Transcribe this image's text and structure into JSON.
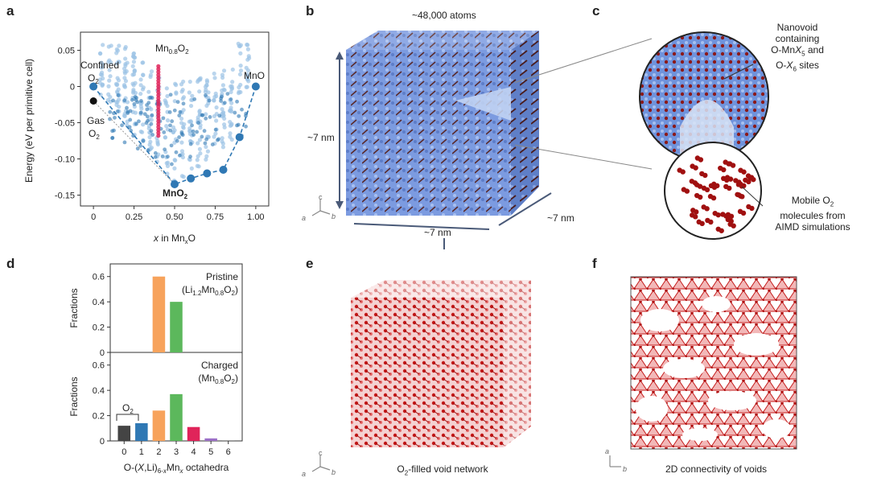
{
  "panels": {
    "a": "a",
    "b": "b",
    "c": "c",
    "d": "d",
    "e": "e",
    "f": "f"
  },
  "colors": {
    "blue": "#2f78b4",
    "lightblue": "#9cc3e6",
    "red": "#e0245a",
    "darkred": "#a01010",
    "orange": "#f7a35c",
    "green": "#5cb85c",
    "purple": "#9b6fc6",
    "gray": "#555555",
    "slab": "#6c8fd6"
  },
  "panel_a": {
    "chart_data": {
      "type": "scatter",
      "xlabel_pre": "x",
      "xlabel_mid": " in Mn",
      "xlabel_sub": "x",
      "xlabel_post": "O",
      "ylabel": "Energy (eV per primitive cell)",
      "xticks": [
        "0",
        "0.25",
        "0.50",
        "0.75",
        "1.00"
      ],
      "yticks": [
        "0.05",
        "0",
        "-0.05",
        "-0.10",
        "-0.15"
      ],
      "xlim": [
        -0.08,
        1.08
      ],
      "ylim": [
        -0.165,
        0.075
      ],
      "hull": [
        [
          0,
          0
        ],
        [
          0.5,
          -0.135
        ],
        [
          0.6,
          -0.127
        ],
        [
          0.7,
          -0.12
        ],
        [
          0.8,
          -0.115
        ],
        [
          0.9,
          -0.07
        ],
        [
          1.0,
          0
        ]
      ],
      "gas_o2": [
        0,
        -0.02
      ],
      "mn08_x": 0.4,
      "mn08_range": [
        -0.068,
        0.03
      ]
    },
    "labels": {
      "confined1": "Confined",
      "confined2": "O",
      "sub2": "2",
      "mn08_pre": "Mn",
      "mn08_sub": "0.8",
      "mn08_post": "O",
      "mno": "MnO",
      "gas1": "Gas",
      "gas2": "O",
      "mno2_pre": "MnO",
      "mno2_sub": "2"
    }
  },
  "panel_b": {
    "atoms": "~48,000 atoms",
    "dim_x": "~7 nm",
    "dim_y": "~7 nm",
    "dim_z": "~7 nm",
    "axis_c": "c",
    "axis_a": "a",
    "axis_b": "b"
  },
  "panel_c": {
    "nano1": "Nanovoid",
    "nano2": "containing",
    "nano3_pre": "O-Mn",
    "nano3_x": "X",
    "nano3_sub": "5",
    "nano3_post": " and",
    "nano4_pre": "O-",
    "nano4_x": "X",
    "nano4_sub": "6",
    "nano4_post": " sites",
    "mob1_pre": "Mobile O",
    "mob1_sub": "2",
    "mob2": "molecules from",
    "mob3": "AIMD simulations"
  },
  "panel_d": {
    "top": {
      "chart_data": {
        "type": "bar",
        "categories": [
          "0",
          "1",
          "2",
          "3",
          "4",
          "5",
          "6"
        ],
        "values": [
          0,
          0,
          0.6,
          0.4,
          0,
          0,
          0
        ],
        "ylim": [
          0,
          0.7
        ],
        "ylabel": "Fractions",
        "yticks": [
          "0",
          "0.2",
          "0.4",
          "0.6"
        ]
      },
      "title": "Pristine",
      "formula_pre": "(Li",
      "formula_s1": "1.2",
      "formula_mid": "Mn",
      "formula_s2": "0.8",
      "formula_post": "O",
      "formula_s3": "2",
      "formula_end": ")"
    },
    "bottom": {
      "chart_data": {
        "type": "bar",
        "categories": [
          "0",
          "1",
          "2",
          "3",
          "4",
          "5",
          "6"
        ],
        "values": [
          0.12,
          0.14,
          0.24,
          0.37,
          0.11,
          0.02,
          0.005
        ],
        "ylim": [
          0,
          0.7
        ],
        "ylabel": "Fractions",
        "yticks": [
          "0",
          "0.2",
          "0.4",
          "0.6"
        ],
        "xlabel": "O-(X,Li)6-xMnx octahedra"
      },
      "title": "Charged",
      "formula_pre": "(Mn",
      "formula_s1": "0.8",
      "formula_mid": "O",
      "formula_s2": "2",
      "formula_end": ")",
      "o2_pre": "O",
      "o2_sub": "2"
    },
    "xlabel": {
      "p1": "O-(",
      "p2": "X",
      "p3": ",Li)",
      "s1": "6-",
      "s2": "x",
      "p4": "Mn",
      "s3": "x",
      "p5": " octahedra"
    }
  },
  "panel_e": {
    "caption_pre": "O",
    "caption_sub": "2",
    "caption_post": "-filled void network",
    "axis_c": "c",
    "axis_a": "a",
    "axis_b": "b"
  },
  "panel_f": {
    "caption": "2D connectivity of voids",
    "axis_a": "a",
    "axis_b": "b"
  }
}
